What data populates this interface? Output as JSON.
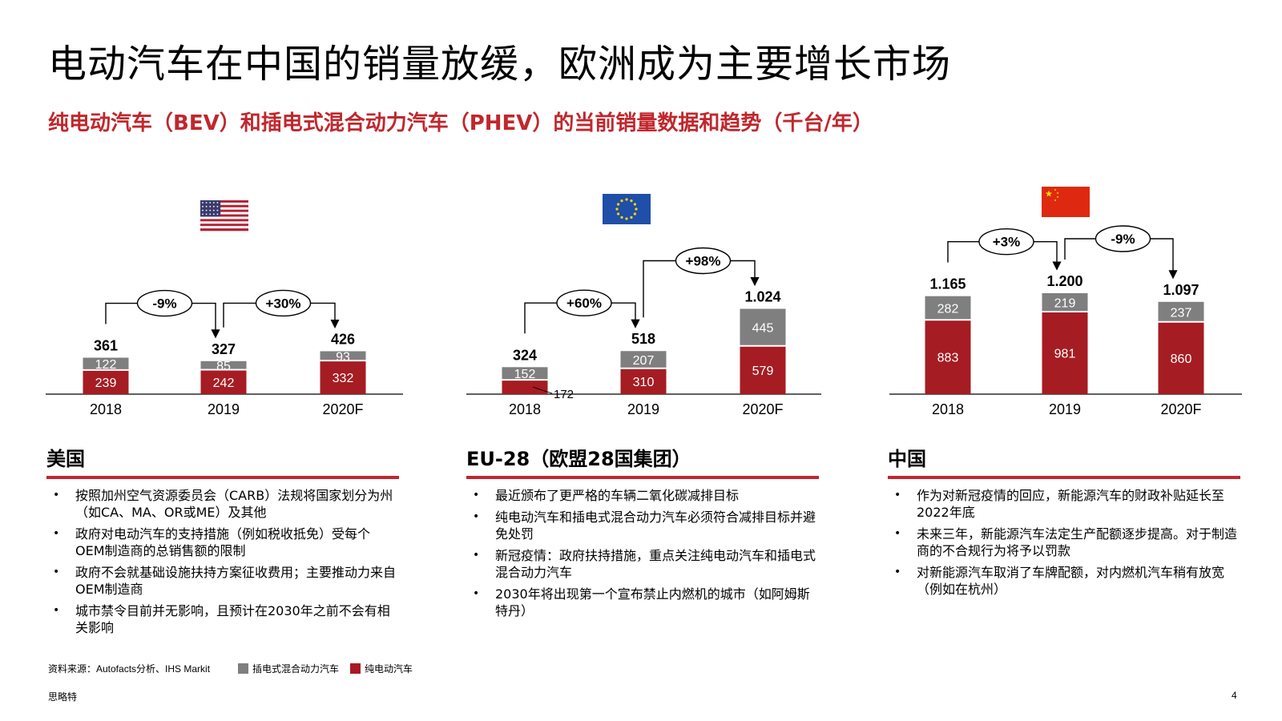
{
  "title": "电动汽车在中国的销量放缓，欧洲成为主要增长市场",
  "subtitle": "纯电动汽车（BEV）和插电式混合动力汽车（PHEV）的当前销量数据和趋势（千台/年）",
  "colors": {
    "bev": "#A61C23",
    "phev": "#7F7F7F",
    "accent": "#C0272D"
  },
  "chart_data": [
    {
      "type": "bar",
      "region": "US",
      "flag": "us-flag-icon",
      "categories": [
        "2018",
        "2019",
        "2020F"
      ],
      "series": [
        {
          "name": "纯电动汽车",
          "values": [
            239,
            242,
            332
          ]
        },
        {
          "name": "插电式混合动力汽车",
          "values": [
            122,
            85,
            93
          ]
        }
      ],
      "totals": [
        "361",
        "327",
        "426"
      ],
      "series_labels": {
        "bev": [
          "239",
          "242",
          "332"
        ],
        "phev": [
          "122",
          "85",
          "93"
        ]
      },
      "changes": [
        "-9%",
        "+30%"
      ]
    },
    {
      "type": "bar",
      "region": "EU-28",
      "flag": "eu-flag-icon",
      "categories": [
        "2018",
        "2019",
        "2020F"
      ],
      "series": [
        {
          "name": "纯电动汽车",
          "values": [
            172,
            310,
            579
          ]
        },
        {
          "name": "插电式混合动力汽车",
          "values": [
            152,
            207,
            445
          ]
        }
      ],
      "totals": [
        "324",
        "518",
        "1.024"
      ],
      "series_labels": {
        "bev": [
          "172",
          "310",
          "579"
        ],
        "phev": [
          "152",
          "207",
          "445"
        ]
      },
      "changes": [
        "+60%",
        "+98%"
      ]
    },
    {
      "type": "bar",
      "region": "China",
      "flag": "china-flag-icon",
      "categories": [
        "2018",
        "2019",
        "2020F"
      ],
      "series": [
        {
          "name": "纯电动汽车",
          "values": [
            883,
            981,
            860
          ]
        },
        {
          "name": "插电式混合动力汽车",
          "values": [
            282,
            219,
            237
          ]
        }
      ],
      "totals": [
        "1.165",
        "1.200",
        "1.097"
      ],
      "series_labels": {
        "bev": [
          "883",
          "981",
          "860"
        ],
        "phev": [
          "282",
          "219",
          "237"
        ]
      },
      "changes": [
        "+3%",
        "-9%"
      ]
    }
  ],
  "sections": [
    {
      "heading": "美国",
      "bullets": [
        "按照加州空气资源委员会（CARB）法规将国家划分为州（如CA、MA、OR或ME）及其他",
        "政府对电动汽车的支持措施（例如税收抵免）受每个OEM制造商的总销售额的限制",
        "政府不会就基础设施扶持方案征收费用；主要推动力来自OEM制造商",
        "城市禁令目前并无影响，且预计在2030年之前不会有相关影响"
      ]
    },
    {
      "heading": "EU-28（欧盟28国集团）",
      "bullets": [
        "最近颁布了更严格的车辆二氧化碳减排目标",
        "纯电动汽车和插电式混合动力汽车必须符合减排目标并避免处罚",
        "新冠疫情：政府扶持措施，重点关注纯电动汽车和插电式混合动力汽车",
        "2030年将出现第一个宣布禁止内燃机的城市（如阿姆斯特丹）"
      ]
    },
    {
      "heading": "中国",
      "bullets": [
        "作为对新冠疫情的回应，新能源汽车的财政补贴延长至2022年底",
        "未来三年，新能源汽车法定生产配额逐步提高。对于制造商的不合规行为将予以罚款",
        "对新能源汽车取消了车牌配额，对内燃机汽车稍有放宽（例如在杭州）"
      ]
    }
  ],
  "footer": {
    "source": "资料来源：Autofacts分析、IHS Markit",
    "legend_phev": "插电式混合动力汽车",
    "legend_bev": "纯电动汽车",
    "brand": "思略特",
    "page": "4"
  }
}
